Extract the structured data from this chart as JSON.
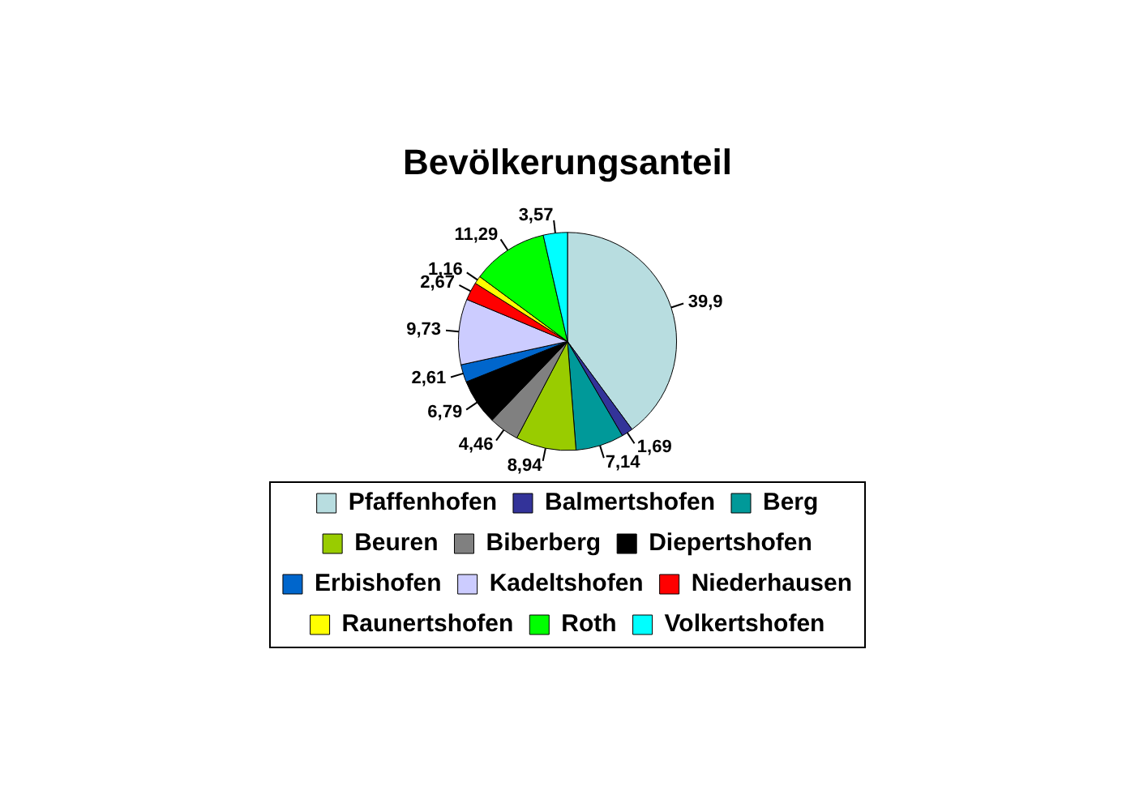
{
  "chart_data": {
    "type": "pie",
    "title": "Bevölkerungsanteil",
    "categories": [
      "Pfaffenhofen",
      "Balmertshofen",
      "Berg",
      "Beuren",
      "Biberberg",
      "Diepertshofen",
      "Erbishofen",
      "Kadeltshofen",
      "Niederhausen",
      "Raunertshofen",
      "Roth",
      "Volkertshofen"
    ],
    "values": [
      39.9,
      1.69,
      7.14,
      8.94,
      4.46,
      6.79,
      2.61,
      9.73,
      2.67,
      1.16,
      11.29,
      3.57
    ],
    "colors": [
      "#b8dde0",
      "#333399",
      "#009999",
      "#99cc00",
      "#808080",
      "#000000",
      "#0066cc",
      "#ccccff",
      "#ff0000",
      "#ffff00",
      "#00ff00",
      "#00ffff"
    ],
    "value_labels": [
      "39,9",
      "1,69",
      "7,14",
      "8,94",
      "4,46",
      "6,79",
      "2,61",
      "9,73",
      "2,67",
      "1,16",
      "11,29",
      "3,57"
    ],
    "legend": "bottom"
  }
}
